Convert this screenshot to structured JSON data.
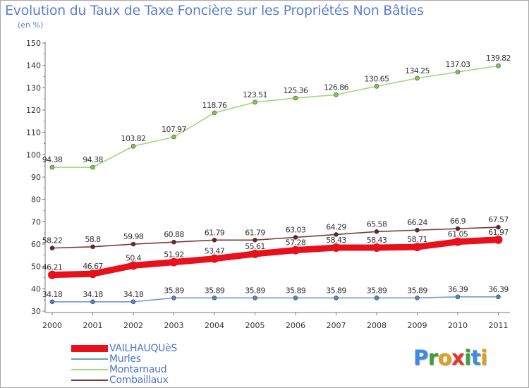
{
  "header": {
    "title": "Evolution du Taux de Taxe Foncière sur les Propriétés Non Bâties",
    "unit": "(en %)"
  },
  "logo": {
    "text": "Proxiti",
    "letters": [
      "P",
      "r",
      "o",
      "x",
      "i",
      "t",
      "i"
    ],
    "colors": [
      "#3a8ce8",
      "#3aa03a",
      "#e2a01a",
      "#e8342a",
      "#3aa03a",
      "#3a8ce8",
      "#e2a01a"
    ]
  },
  "chart_data": {
    "type": "line",
    "title": "Evolution du Taux de Taxe Foncière sur les Propriétés Non Bâties",
    "ylabel": "(en %)",
    "xlabel": "",
    "x": [
      "2000",
      "2001",
      "2002",
      "2003",
      "2004",
      "2005",
      "2006",
      "2007",
      "2008",
      "2009",
      "2010",
      "2011"
    ],
    "ylim": [
      30,
      150
    ],
    "yticks": [
      30,
      40,
      50,
      60,
      70,
      80,
      90,
      100,
      110,
      120,
      130,
      140,
      150
    ],
    "grid": false,
    "legend_position": "bottom-left",
    "series": [
      {
        "name": "VAILHAUQUèS",
        "color": "#e8111b",
        "marker_color": "#e8111b",
        "values": [
          46.21,
          46.67,
          50.4,
          51.92,
          53.47,
          55.61,
          57.28,
          58.43,
          58.43,
          58.71,
          61.05,
          61.97
        ],
        "labels": [
          "46.21",
          "46.67",
          "50.4",
          "51.92",
          "53.47",
          "55.61",
          "57.28",
          "58.43",
          "58.43",
          "58.71",
          "61.05",
          "61.97"
        ]
      },
      {
        "name": "Murles",
        "color": "#6f9cc8",
        "marker_color": "#4f86c6",
        "values": [
          34.18,
          34.18,
          34.18,
          35.89,
          35.89,
          35.89,
          35.89,
          35.89,
          35.89,
          35.89,
          36.39,
          36.39
        ],
        "labels": [
          "34.18",
          "34.18",
          "34.18",
          "35.89",
          "35.89",
          "35.89",
          "35.89",
          "35.89",
          "35.89",
          "35.89",
          "36.39",
          "36.39"
        ]
      },
      {
        "name": "Montarnaud",
        "color": "#9fd87a",
        "marker_color": "#7ec850",
        "values": [
          94.38,
          94.38,
          103.82,
          107.97,
          118.76,
          123.51,
          125.36,
          126.86,
          130.65,
          134.25,
          137.03,
          139.82
        ],
        "labels": [
          "94.38",
          "94.38",
          "103.82",
          "107.97",
          "118.76",
          "123.51",
          "125.36",
          "126.86",
          "130.65",
          "134.25",
          "137.03",
          "139.82"
        ]
      },
      {
        "name": "Combaillaux",
        "color": "#7a3a3a",
        "marker_color": "#6a2424",
        "values": [
          58.22,
          58.8,
          59.98,
          60.88,
          61.79,
          61.79,
          63.03,
          64.29,
          65.58,
          66.24,
          66.9,
          67.57
        ],
        "labels": [
          "58.22",
          "58.8",
          "59.98",
          "60.88",
          "61.79",
          "61.79",
          "63.03",
          "64.29",
          "65.58",
          "66.24",
          "66.9",
          "67.57"
        ]
      }
    ]
  }
}
